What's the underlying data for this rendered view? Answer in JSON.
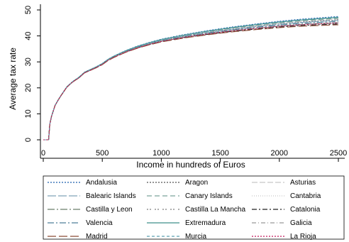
{
  "chart_data": {
    "type": "line",
    "xlabel": "Income in hundreds of Euros",
    "ylabel": "Average tax rate",
    "xlim": [
      0,
      2500
    ],
    "ylim": [
      0,
      50
    ],
    "x_ticks": [
      "0",
      "500",
      "1000",
      "1500",
      "2000",
      "2500"
    ],
    "y_ticks": [
      "0",
      "10",
      "20",
      "30",
      "40",
      "50"
    ],
    "grid": false,
    "legend_position": "bottom",
    "legend_columns": 3,
    "x": [
      0,
      25,
      45,
      55,
      70,
      100,
      125,
      150,
      200,
      250,
      300,
      350,
      400,
      450,
      500,
      550,
      600,
      700,
      800,
      900,
      1000,
      1200,
      1400,
      1600,
      1800,
      2000,
      2200,
      2400,
      2500
    ],
    "base_curve": [
      0,
      0,
      0,
      6,
      9,
      13.2,
      15.2,
      17,
      20.3,
      22.3,
      23.8,
      25.8,
      26.8,
      27.8,
      29,
      30.6,
      31.8,
      33.8,
      35.4,
      36.7,
      37.8,
      39.4,
      40.7,
      41.8,
      42.7,
      43.5,
      44.1,
      44.5,
      44.7
    ],
    "series": [
      {
        "name": "Andalusia",
        "final_value": 47.5,
        "color": "#1f5fae",
        "dash": "2,2"
      },
      {
        "name": "Aragon",
        "final_value": 46.2,
        "color": "#555555",
        "dash": "2,2"
      },
      {
        "name": "Asturias",
        "final_value": 46.5,
        "color": "#c8c8c8",
        "dash": "8,3"
      },
      {
        "name": "Balearic Islands",
        "final_value": 46.0,
        "color": "#7fa3b8",
        "dash": "12,3"
      },
      {
        "name": "Canary Islands",
        "final_value": 46.8,
        "color": "#7aa39a",
        "dash": "7,4"
      },
      {
        "name": "Cantabria",
        "final_value": 45.3,
        "color": "#c8c8c8",
        "dash": "1,2"
      },
      {
        "name": "Castilla y Leon",
        "final_value": 45.0,
        "color": "#6b7d6b",
        "dash": "10,3,2,3"
      },
      {
        "name": "Castilla La Mancha",
        "final_value": 44.9,
        "color": "#7d7d7d",
        "dash": "2,2,2,5"
      },
      {
        "name": "Catalonia",
        "final_value": 44.6,
        "color": "#222222",
        "dash": "7,3,2,3"
      },
      {
        "name": "Valencia",
        "final_value": 45.6,
        "color": "#4e7d99",
        "dash": "9,3,2,3"
      },
      {
        "name": "Extremadura",
        "final_value": 47.1,
        "color": "#3d8f8a",
        "dash": ""
      },
      {
        "name": "Galicia",
        "final_value": 45.2,
        "color": "#999999",
        "dash": "6,3,1,3"
      },
      {
        "name": "Madrid",
        "final_value": 44.3,
        "color": "#8b4a35",
        "dash": "12,4"
      },
      {
        "name": "Murcia",
        "final_value": 47.3,
        "color": "#5aa0b0",
        "dash": "4,3"
      },
      {
        "name": "La Rioja",
        "final_value": 45.0,
        "color": "#c2185b",
        "dash": "2,2"
      }
    ]
  }
}
